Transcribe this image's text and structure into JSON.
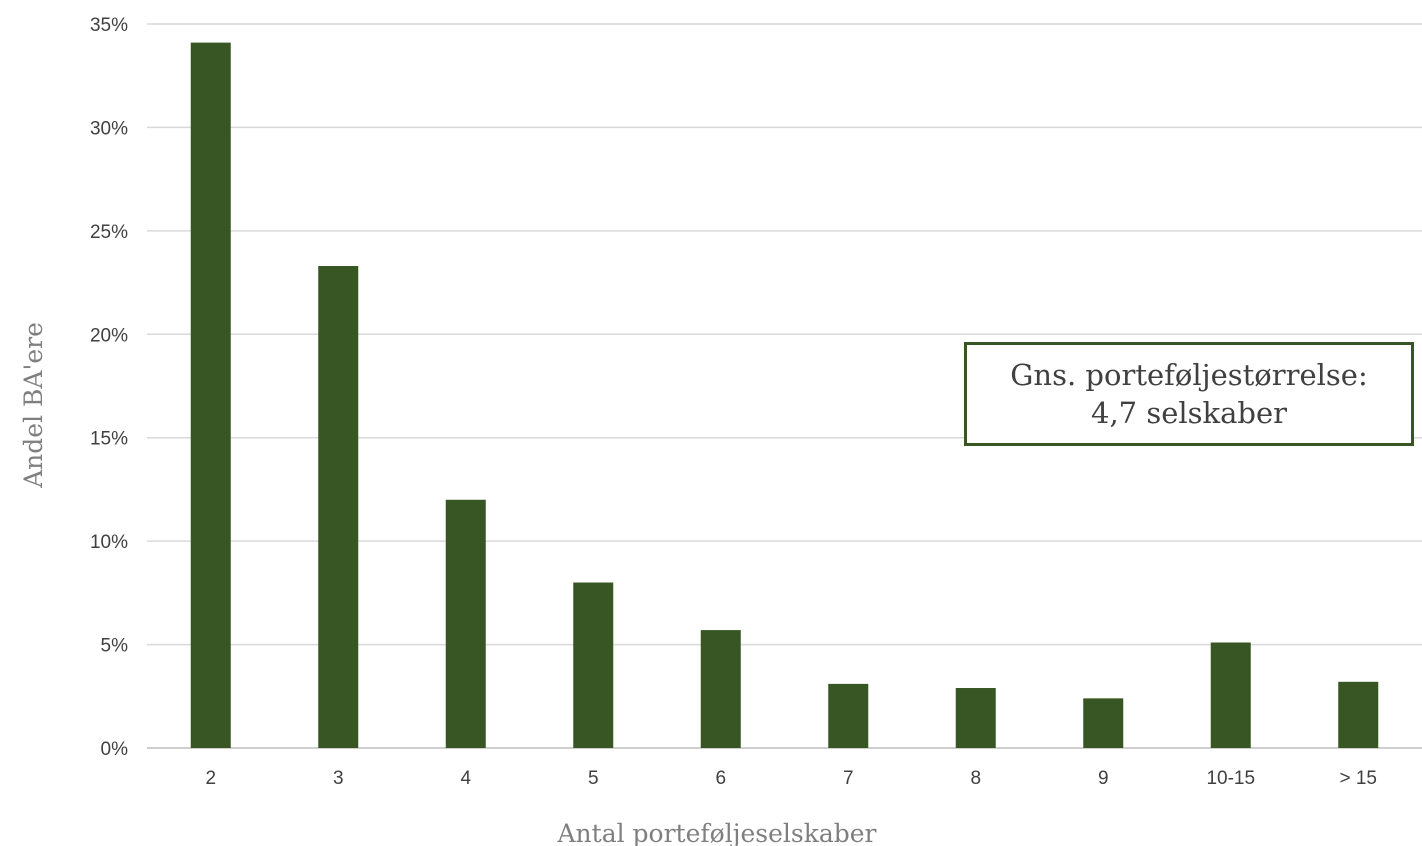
{
  "colors": {
    "bar": "#375623",
    "grid": "#d9d9d9",
    "tick_text": "#404040",
    "axis_title": "#7f7f7f",
    "annotation_border": "#375623"
  },
  "chart_data": {
    "type": "bar",
    "title": "",
    "xlabel": "Antal porteføljeselskaber",
    "ylabel": "Andel BA'ere",
    "categories": [
      "2",
      "3",
      "4",
      "5",
      "6",
      "7",
      "8",
      "9",
      "10-15",
      "> 15"
    ],
    "values": [
      34.1,
      23.3,
      12.0,
      8.0,
      5.7,
      3.1,
      2.9,
      2.4,
      5.1,
      3.2
    ],
    "ylim": [
      0,
      35
    ],
    "yticks": [
      "0%",
      "5%",
      "10%",
      "15%",
      "20%",
      "25%",
      "30%",
      "35%"
    ],
    "ytick_values": [
      0,
      5,
      10,
      15,
      20,
      25,
      30,
      35
    ],
    "grid": true,
    "legend": "none",
    "annotation": {
      "line1": "Gns. porteføljestørrelse:",
      "line2": "4,7 selskaber"
    }
  }
}
